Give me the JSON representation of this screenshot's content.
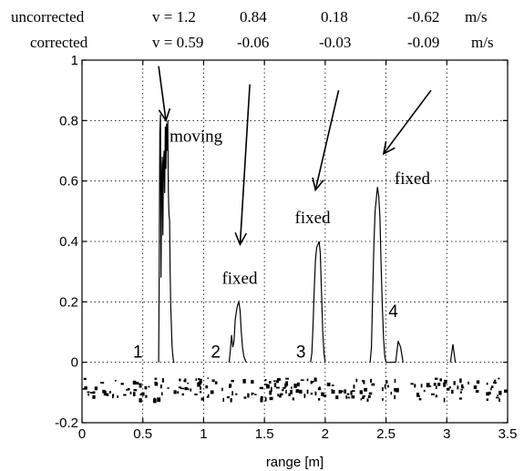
{
  "header": {
    "uncorrected_label": "uncorrected",
    "corrected_label": "corrected",
    "uncorrected_values": [
      "v = 1.2",
      "0.84",
      "0.18",
      "-0.62"
    ],
    "corrected_values": [
      "v = 0.59",
      "-0.06",
      "-0.03",
      "-0.09"
    ],
    "unit": "m/s"
  },
  "chart_data": {
    "type": "line",
    "xlabel": "range [m]",
    "ylabel": "",
    "title": "",
    "xlim": [
      0,
      3.5
    ],
    "ylim": [
      -0.2,
      1
    ],
    "grid": true,
    "xticks": [
      "0",
      "0.5",
      "1",
      "1.5",
      "2",
      "2.5",
      "3",
      "3.5"
    ],
    "yticks": [
      "-0.2",
      "0",
      "0.2",
      "0.4",
      "0.6",
      "0.8",
      "1"
    ],
    "series": [
      {
        "x": [
          0.63,
          0.635,
          0.64,
          0.645,
          0.65,
          0.655,
          0.66,
          0.665,
          0.67,
          0.675,
          0.68,
          0.685,
          0.69,
          0.695,
          0.7,
          0.705,
          0.71,
          0.715,
          0.72,
          0.725,
          0.73,
          0.735,
          0.74,
          0.745,
          0.75,
          0.755,
          0.76,
          1.21,
          1.22,
          1.23,
          1.24,
          1.25,
          1.26,
          1.27,
          1.28,
          1.29,
          1.3,
          1.31,
          1.32,
          1.33,
          1.34,
          1.35,
          1.88,
          1.89,
          1.9,
          1.91,
          1.92,
          1.93,
          1.94,
          1.95,
          1.96,
          1.97,
          1.98,
          1.99,
          2.0,
          2.37,
          2.38,
          2.39,
          2.4,
          2.41,
          2.42,
          2.43,
          2.44,
          2.45,
          2.46,
          2.47,
          2.48,
          2.49,
          2.5,
          2.58,
          2.6,
          2.62,
          2.64,
          3.03,
          3.05,
          3.07
        ],
        "y": [
          0.0,
          0.3,
          0.76,
          0.82,
          0.28,
          0.62,
          0.68,
          0.42,
          0.66,
          0.7,
          0.56,
          0.78,
          0.64,
          0.79,
          0.7,
          0.8,
          0.57,
          0.49,
          0.47,
          0.3,
          0.18,
          0.12,
          0.06,
          0.03,
          0.01,
          0.0,
          0.0,
          0.0,
          0.04,
          0.09,
          0.05,
          0.07,
          0.14,
          0.17,
          0.19,
          0.2,
          0.17,
          0.1,
          0.05,
          0.02,
          0.01,
          0.0,
          0.0,
          0.03,
          0.12,
          0.24,
          0.34,
          0.38,
          0.39,
          0.4,
          0.36,
          0.22,
          0.1,
          0.03,
          0.0,
          0.0,
          0.05,
          0.22,
          0.38,
          0.5,
          0.54,
          0.58,
          0.55,
          0.48,
          0.32,
          0.18,
          0.08,
          0.02,
          0.0,
          0.0,
          0.07,
          0.05,
          0.0,
          0.0,
          0.06,
          0.0
        ]
      }
    ],
    "annotations": [
      {
        "text": "moving",
        "x": 0.72,
        "y": 0.73
      },
      {
        "text": "fixed",
        "x": 1.15,
        "y": 0.26
      },
      {
        "text": "fixed",
        "x": 1.75,
        "y": 0.46
      },
      {
        "text": "fixed",
        "x": 2.57,
        "y": 0.59
      }
    ],
    "target_numbers": [
      {
        "text": "1",
        "x": 0.42,
        "y": 0.015
      },
      {
        "text": "2",
        "x": 1.06,
        "y": 0.015
      },
      {
        "text": "3",
        "x": 1.76,
        "y": 0.015
      },
      {
        "text": "4",
        "x": 2.52,
        "y": 0.15
      }
    ],
    "arrows": [
      {
        "from": [
          0.63,
          0.98
        ],
        "to": [
          0.69,
          0.8
        ]
      },
      {
        "from": [
          1.38,
          0.92
        ],
        "to": [
          1.3,
          0.39
        ]
      },
      {
        "from": [
          2.11,
          0.9
        ],
        "to": [
          1.92,
          0.57
        ]
      },
      {
        "from": [
          2.87,
          0.9
        ],
        "to": [
          2.48,
          0.69
        ]
      }
    ],
    "noise_band": {
      "y_min": -0.12,
      "y_max": -0.05
    }
  }
}
